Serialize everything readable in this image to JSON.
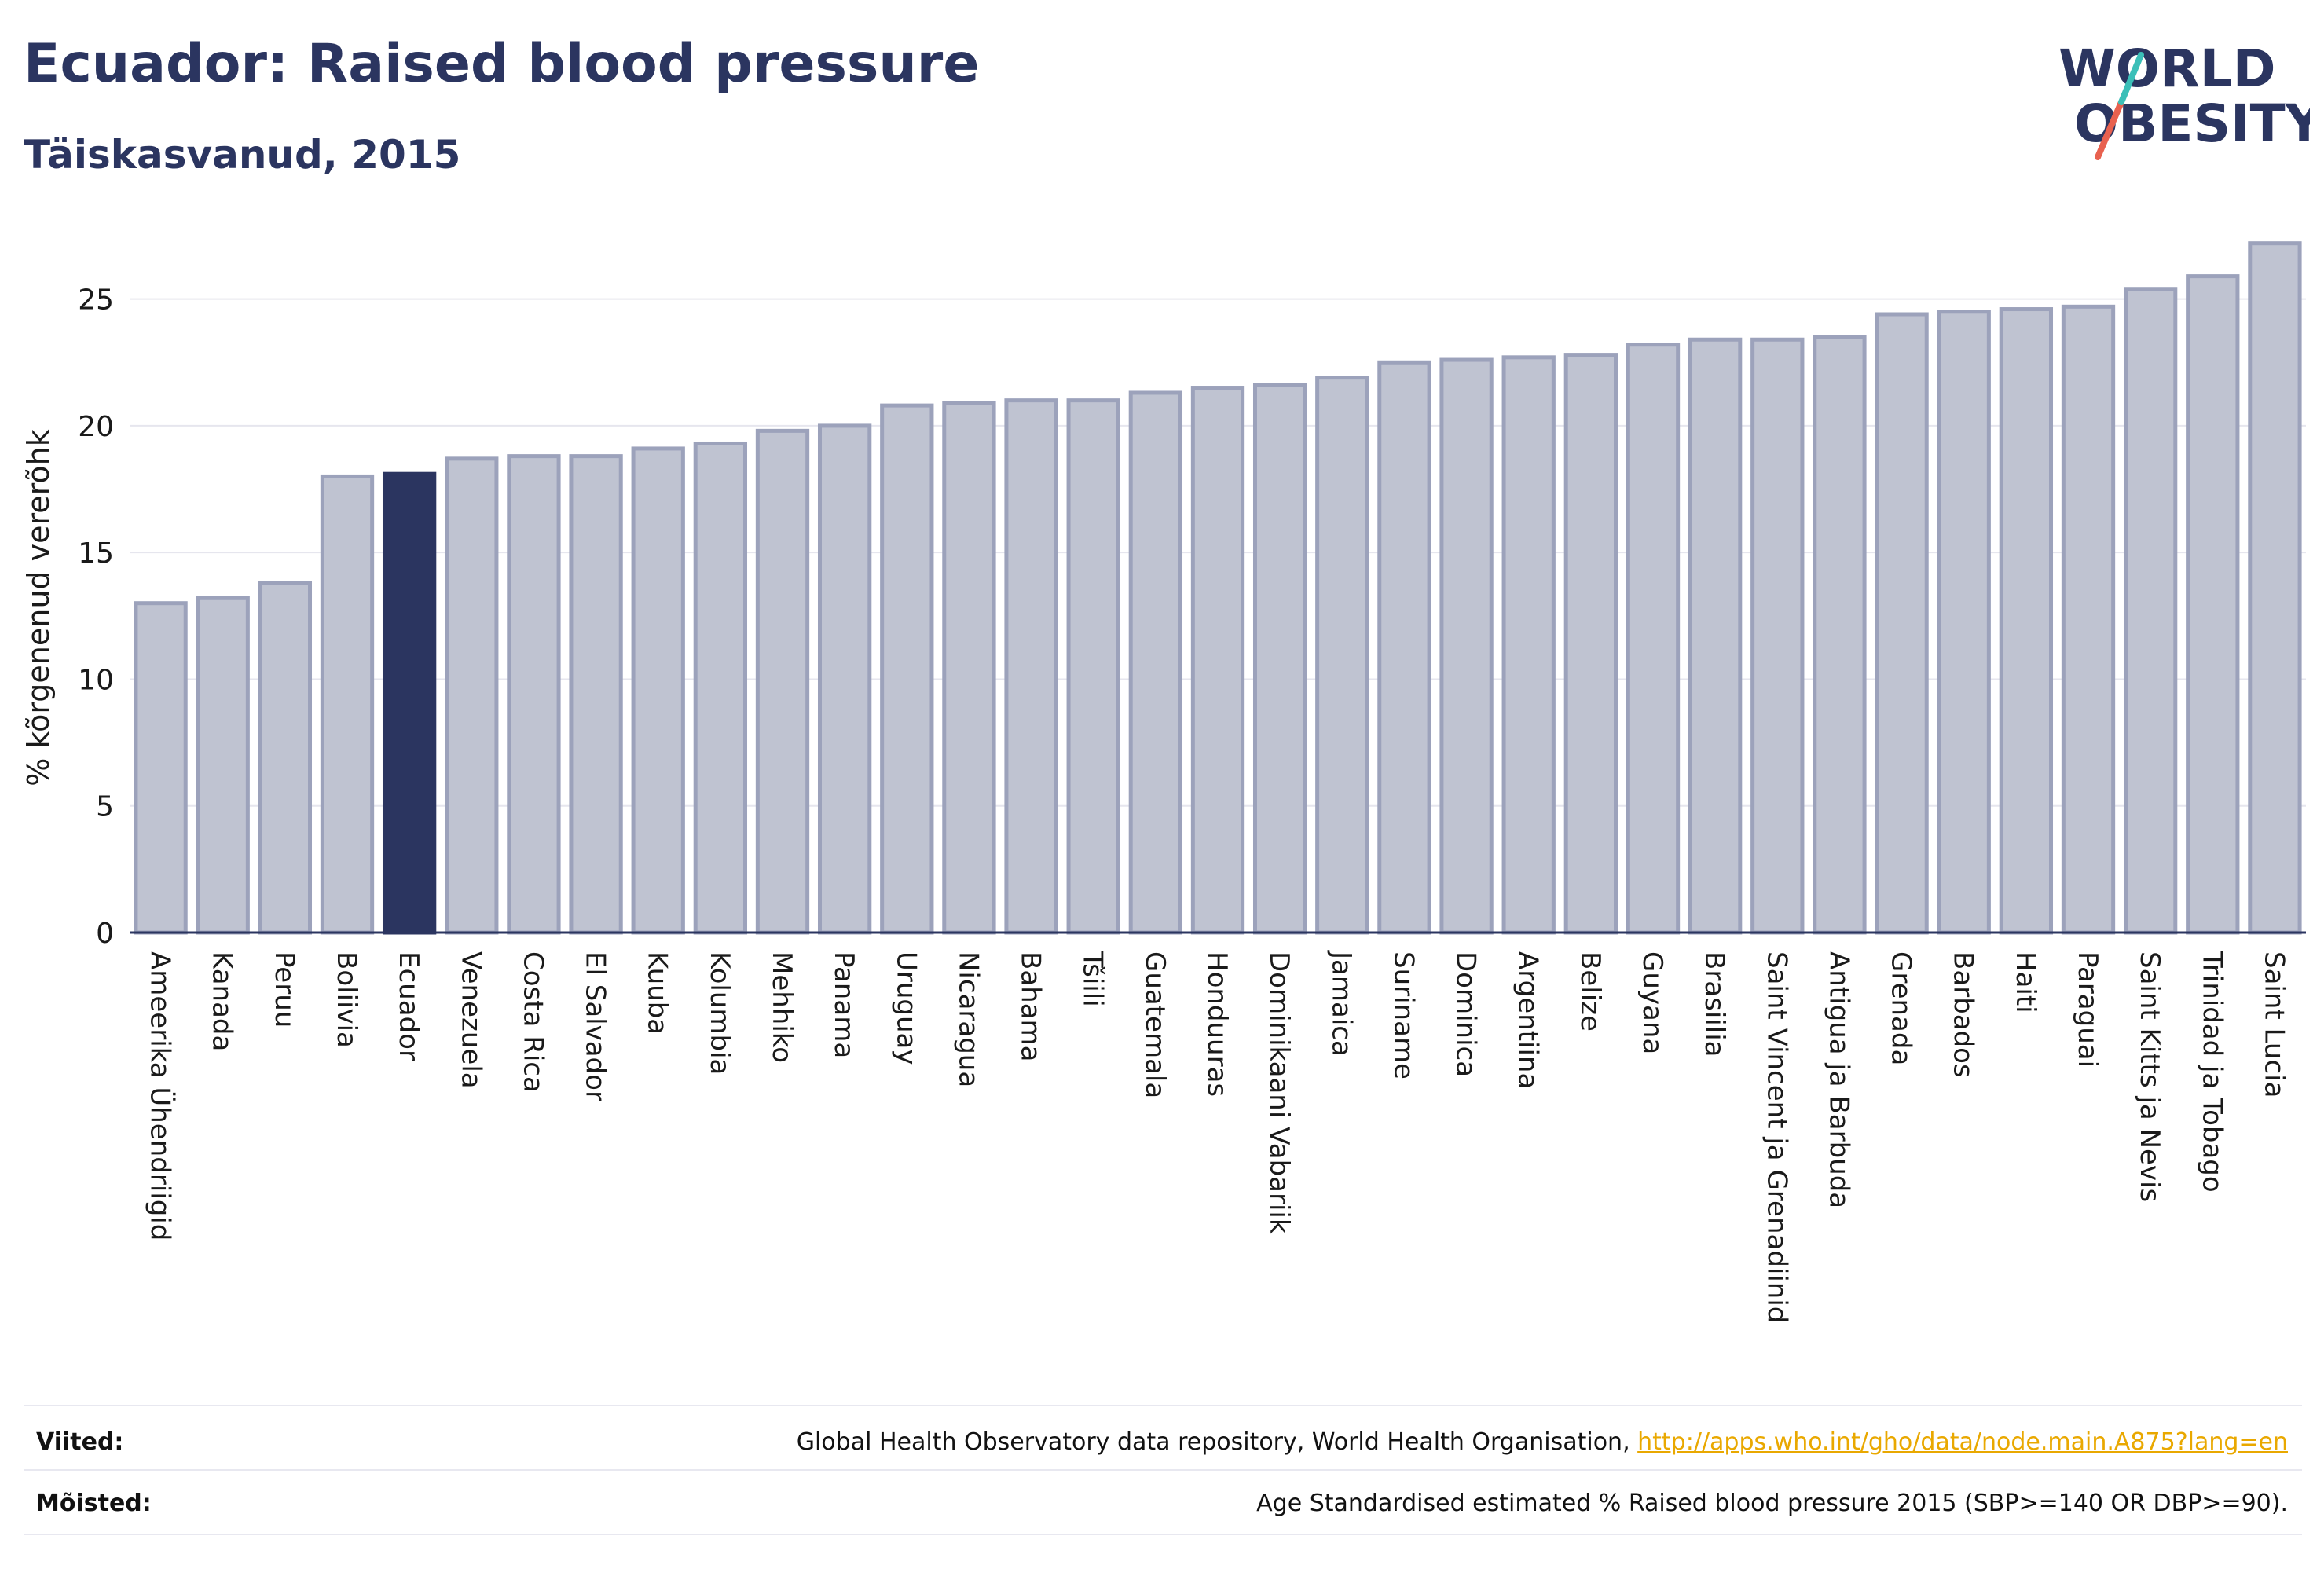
{
  "header": {
    "title": "Ecuador: Raised blood pressure",
    "subtitle": "Täiskasvanud, 2015"
  },
  "logo": {
    "line1": "WORLD",
    "line2": "OBESITY",
    "colors": {
      "text": "#2b3560",
      "slash_teal": "#3bbfb8",
      "slash_red": "#e8614f"
    }
  },
  "colors": {
    "bar_default": "#bfc3d1",
    "bar_border": "#9ca2bb",
    "bar_highlight": "#2b3560",
    "grid": "#e6e6ee",
    "axis": "#2b3560"
  },
  "chart_data": {
    "type": "bar",
    "title": "Ecuador: Raised blood pressure",
    "subtitle": "Täiskasvanud, 2015",
    "xlabel": "",
    "ylabel": "% kõrgenenud vererõhk",
    "ylim": [
      0,
      27.5
    ],
    "yticks": [
      0,
      5,
      10,
      15,
      20,
      25
    ],
    "grid": true,
    "highlight": "Ecuador",
    "categories": [
      "Ameerika Ühendriigid",
      "Kanada",
      "Peruu",
      "Boliivia",
      "Ecuador",
      "Venezuela",
      "Costa Rica",
      "El Salvador",
      "Kuuba",
      "Kolumbia",
      "Mehhiko",
      "Panama",
      "Uruguay",
      "Nicaragua",
      "Bahama",
      "Tšiili",
      "Guatemala",
      "Honduuras",
      "Dominikaani Vabariik",
      "Jamaica",
      "Suriname",
      "Dominica",
      "Argentiina",
      "Belize",
      "Guyana",
      "Brasiilia",
      "Saint Vincent ja Grenadiinid",
      "Antigua ja Barbuda",
      "Grenada",
      "Barbados",
      "Haiti",
      "Paraguai",
      "Saint Kitts ja Nevis",
      "Trinidad ja Tobago",
      "Saint Lucia"
    ],
    "values": [
      13.0,
      13.2,
      13.8,
      18.0,
      18.1,
      18.7,
      18.8,
      18.8,
      19.1,
      19.3,
      19.8,
      20.0,
      20.8,
      20.9,
      21.0,
      21.0,
      21.3,
      21.5,
      21.6,
      21.9,
      22.5,
      22.6,
      22.7,
      22.8,
      23.2,
      23.4,
      23.4,
      23.5,
      24.4,
      24.5,
      24.6,
      24.7,
      25.4,
      25.9,
      27.2
    ]
  },
  "footer": {
    "references_label": "Viited:",
    "references_text": "Global Health Observatory data repository, World Health Organisation, ",
    "references_link": "http://apps.who.int/gho/data/node.main.A875?lang=en",
    "definitions_label": "Mõisted:",
    "definitions_text": "Age Standardised estimated % Raised blood pressure 2015 (SBP>=140 OR DBP>=90)."
  }
}
